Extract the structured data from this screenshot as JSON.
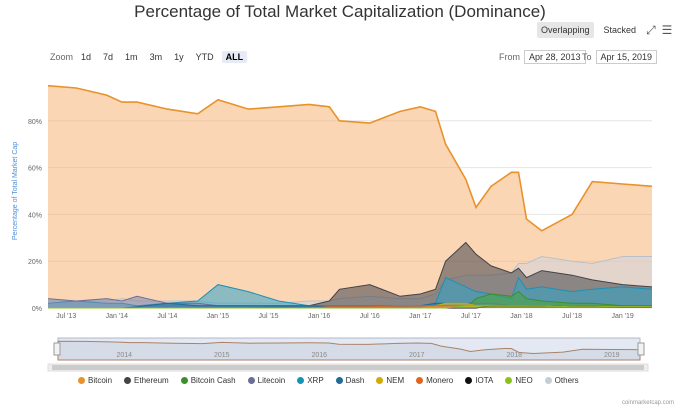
{
  "title": "Percentage of Total Market Capitalization (Dominance)",
  "modes": {
    "overlapping": "Overlapping",
    "stacked": "Stacked"
  },
  "zoom": {
    "label": "Zoom",
    "buttons": [
      "1d",
      "7d",
      "1m",
      "3m",
      "1y",
      "YTD",
      "ALL"
    ],
    "active": "ALL"
  },
  "range": {
    "from_label": "From",
    "from": "Apr 28, 2013",
    "to_label": "To",
    "to": "Apr 15, 2019"
  },
  "credit": "coinmarketcap.com",
  "chart_data": {
    "type": "area",
    "title": "Percentage of Total Market Capitalization (Dominance)",
    "ylabel": "Percentage of Total Market Cap",
    "ylim": [
      0,
      100
    ],
    "yticks": [
      0,
      20,
      40,
      60,
      80
    ],
    "ytick_labels": [
      "0%",
      "20%",
      "40%",
      "60%",
      "80%"
    ],
    "xlim": [
      2013.32,
      2019.29
    ],
    "xticks": [
      2013.5,
      2014.0,
      2014.5,
      2015.0,
      2015.5,
      2016.0,
      2016.5,
      2017.0,
      2017.5,
      2018.0,
      2018.5,
      2019.0
    ],
    "xtick_labels": [
      "Jul '13",
      "Jan '14",
      "Jul '14",
      "Jan '15",
      "Jul '15",
      "Jan '16",
      "Jul '16",
      "Jan '17",
      "Jul '17",
      "Jan '18",
      "Jul '18",
      "Jan '19"
    ],
    "navigator_labels": [
      "2014",
      "2015",
      "2016",
      "2017",
      "2018",
      "2019"
    ],
    "navigator_ticks": [
      2014.0,
      2015.0,
      2016.0,
      2017.0,
      2018.0,
      2019.0
    ],
    "x": [
      2013.32,
      2013.6,
      2013.9,
      2014.05,
      2014.2,
      2014.5,
      2014.8,
      2015.0,
      2015.3,
      2015.6,
      2015.9,
      2016.1,
      2016.2,
      2016.5,
      2016.8,
      2017.0,
      2017.15,
      2017.25,
      2017.45,
      2017.55,
      2017.7,
      2017.9,
      2017.97,
      2018.05,
      2018.2,
      2018.5,
      2018.7,
      2019.0,
      2019.29
    ],
    "series": [
      {
        "name": "Bitcoin",
        "color": "#f7a35c",
        "line": "#e8922a",
        "values": [
          95,
          94,
          91,
          88,
          88,
          85,
          83,
          89,
          85,
          86,
          87,
          86,
          80,
          79,
          84,
          86,
          84,
          70,
          55,
          43,
          52,
          58,
          58,
          38,
          33,
          40,
          54,
          53,
          52
        ]
      },
      {
        "name": "Ethereum",
        "color": "#434348",
        "line": "#434348",
        "values": [
          0,
          0,
          0,
          0,
          0,
          0,
          0,
          0,
          0,
          0.5,
          1,
          3,
          8,
          10,
          5,
          6,
          8,
          20,
          28,
          23,
          18,
          15,
          17,
          13,
          16,
          14,
          12,
          10,
          9
        ]
      },
      {
        "name": "Bitcoin Cash",
        "color": "#4aa43a",
        "line": "#3a8f2c",
        "values": [
          0,
          0,
          0,
          0,
          0,
          0,
          0,
          0,
          0,
          0,
          0,
          0,
          0,
          0,
          0,
          0,
          0,
          0,
          0,
          4,
          6,
          5,
          7,
          4,
          3,
          2,
          2,
          1,
          1
        ]
      },
      {
        "name": "Litecoin",
        "color": "#8085a9",
        "line": "#6a6f96",
        "values": [
          4,
          3,
          4,
          3,
          5,
          2,
          2,
          1,
          1,
          1,
          1,
          1,
          1,
          1,
          1,
          1,
          1,
          2,
          2,
          2,
          2,
          1,
          1,
          1,
          1,
          1,
          1,
          1,
          1
        ]
      },
      {
        "name": "XRP",
        "color": "#2fa6c9",
        "line": "#1b91b6",
        "values": [
          2,
          3,
          2,
          2,
          1,
          2,
          3,
          10,
          7,
          3,
          1,
          1,
          1,
          1,
          1,
          1,
          2,
          13,
          9,
          7,
          6,
          4,
          13,
          8,
          9,
          7,
          8,
          9,
          8
        ]
      },
      {
        "name": "Dash",
        "color": "#1f6b99",
        "line": "#1f6b99",
        "values": [
          0,
          0,
          0,
          0,
          0.5,
          2,
          1,
          1,
          1,
          1,
          1,
          0.5,
          0.5,
          0.5,
          0.5,
          1,
          2,
          2,
          2,
          1,
          1,
          1,
          1,
          1,
          1,
          1,
          0.5,
          0.5,
          0.5
        ]
      },
      {
        "name": "NEM",
        "color": "#f2c30b",
        "line": "#d6a900",
        "values": [
          0,
          0,
          0,
          0,
          0,
          0,
          0,
          0,
          0,
          0,
          0,
          0,
          0,
          0,
          0,
          0,
          1,
          2,
          2,
          1,
          1,
          1,
          1,
          1,
          0.5,
          0.3,
          0.3,
          0.2,
          0.2
        ]
      },
      {
        "name": "Monero",
        "color": "#f47f43",
        "line": "#e06520",
        "values": [
          0,
          0,
          0,
          0,
          0,
          0,
          0,
          0,
          0,
          0,
          0,
          0.5,
          0.5,
          0.5,
          1,
          1,
          1,
          1,
          1,
          1,
          1,
          1,
          1,
          0.5,
          1,
          1,
          0.5,
          0.5,
          0.5
        ]
      },
      {
        "name": "IOTA",
        "color": "#111111",
        "line": "#111111",
        "values": [
          0,
          0,
          0,
          0,
          0,
          0,
          0,
          0,
          0,
          0,
          0,
          0,
          0,
          0,
          0,
          0,
          0,
          0,
          0,
          0,
          1,
          1,
          1,
          1,
          1,
          0.5,
          0.5,
          0.2,
          0.2
        ]
      },
      {
        "name": "NEO",
        "color": "#a6d63c",
        "line": "#8cbf22",
        "values": [
          0,
          0,
          0,
          0,
          0,
          0,
          0,
          0,
          0,
          0,
          0,
          0,
          0,
          0,
          0,
          0,
          0,
          0,
          1,
          1,
          1,
          1,
          1,
          1,
          1,
          0.5,
          0.5,
          0.5,
          0.5
        ]
      },
      {
        "name": "Others",
        "color": "#cfd6de",
        "line": "#b8c1cb",
        "values": [
          3,
          3,
          3,
          4,
          3,
          3,
          3,
          2,
          2,
          2,
          3,
          3,
          4,
          5,
          4,
          4,
          6,
          12,
          14,
          14,
          14,
          15,
          19,
          19,
          22,
          20,
          19,
          22,
          22
        ]
      }
    ]
  }
}
